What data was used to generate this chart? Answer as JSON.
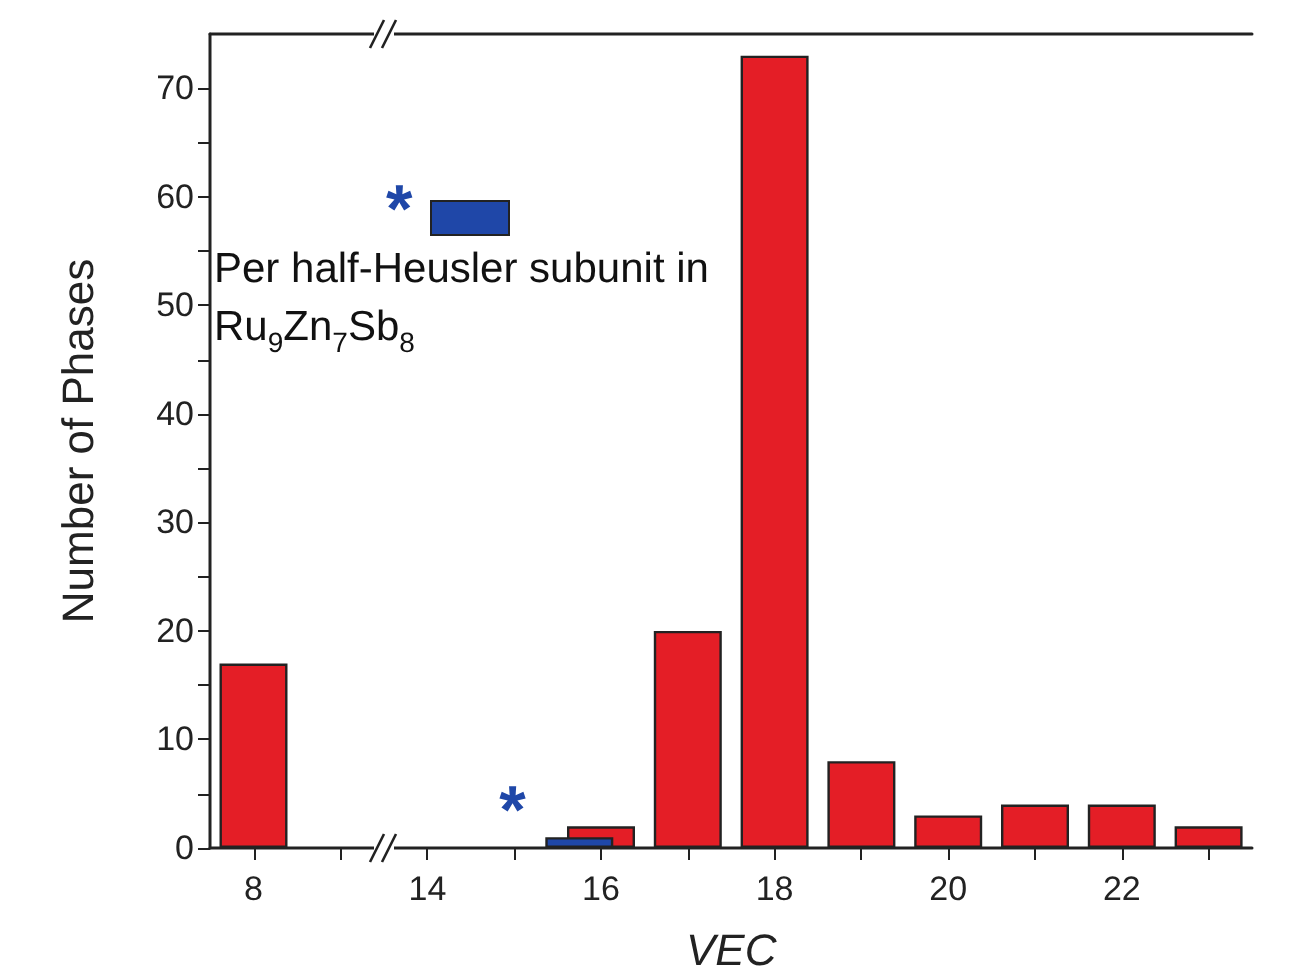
{
  "chart_data": [
    {
      "type": "bar",
      "ylabel": "Number of Phases",
      "categories": [
        "8",
        null
      ],
      "series": [
        {
          "color": "#e41e26",
          "values": [
            17,
            null
          ]
        }
      ],
      "ylim": [
        0,
        75
      ],
      "yticks": [
        0,
        {
          "value": 5,
          "label": null
        },
        10,
        {
          "value": 15,
          "label": null
        },
        20,
        {
          "value": 25,
          "label": null
        },
        30,
        {
          "value": 35,
          "label": null
        },
        40,
        {
          "value": 45,
          "label": null
        },
        50,
        {
          "value": 55,
          "label": null
        },
        60,
        {
          "value": 65,
          "label": null
        },
        70
      ],
      "grid": false
    },
    {
      "type": "bar",
      "xlabel": "VEC",
      "series": [
        {
          "color": "#e41e26",
          "x": [
            16,
            17,
            18,
            19,
            20,
            21,
            22,
            23
          ],
          "values": [
            2,
            20,
            73,
            8,
            3,
            4,
            4,
            2
          ]
        },
        {
          "name": "Per half-Heusler subunit in Ru$_{9}$Zn$_{7}$Sb$_{8}$",
          "color": "#1f47a8",
          "x": [
            15.75
          ],
          "values": [
            1
          ]
        }
      ],
      "xlim": [
        13.5,
        23.5
      ],
      "xticks": [
        14,
        {
          "value": 15,
          "label": null
        },
        16,
        {
          "value": 17,
          "label": null
        },
        18,
        {
          "value": 19,
          "label": null
        },
        20,
        {
          "value": 21,
          "label": null
        },
        22,
        {
          "value": 23,
          "label": null
        }
      ],
      "ylim": [
        0,
        75
      ],
      "annotations": [
        {
          "text": "*",
          "x": 15.75,
          "y": 1
        },
        "*"
      ],
      "legend": "top left",
      "tick_labels": "x",
      "grid": false
    }
  ]
}
